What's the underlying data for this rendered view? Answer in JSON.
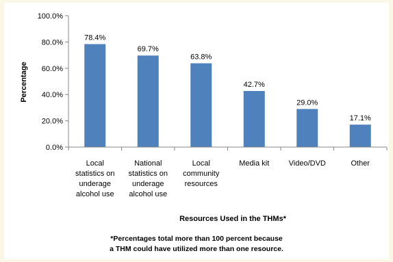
{
  "chart_data": {
    "type": "bar",
    "categories": [
      "Local statistics on underage alcohol use",
      "National statistics on underage alcohol use",
      "Local community resources",
      "Media kit",
      "Video/DVD",
      "Other"
    ],
    "category_lines": [
      [
        "Local",
        "statistics on",
        "underage",
        "alcohol use"
      ],
      [
        "National",
        "statistics on",
        "underage",
        "alcohol use"
      ],
      [
        "Local",
        "community",
        "resources"
      ],
      [
        "Media kit"
      ],
      [
        "Video/DVD"
      ],
      [
        "Other"
      ]
    ],
    "values": [
      78.4,
      69.7,
      63.8,
      42.7,
      29.0,
      17.1
    ],
    "data_labels": [
      "78.4%",
      "69.7%",
      "63.8%",
      "42.7%",
      "29.0%",
      "17.1%"
    ],
    "ylabel": "Percentage",
    "xlabel": "Resources Used in the THMs*",
    "ylim": [
      0,
      100
    ],
    "y_ticks": [
      0,
      20,
      40,
      60,
      80,
      100
    ],
    "y_tick_labels": [
      "0.0%",
      "20.0%",
      "40.0%",
      "60.0%",
      "80.0%",
      "100.0%"
    ],
    "grid": false,
    "colors": {
      "bar": "#4f81bd",
      "axis": "#868686"
    }
  },
  "footnote": {
    "line1": "*Percentages total more than 100 percent because",
    "line2": "a THM could have utilized more than one resource."
  }
}
